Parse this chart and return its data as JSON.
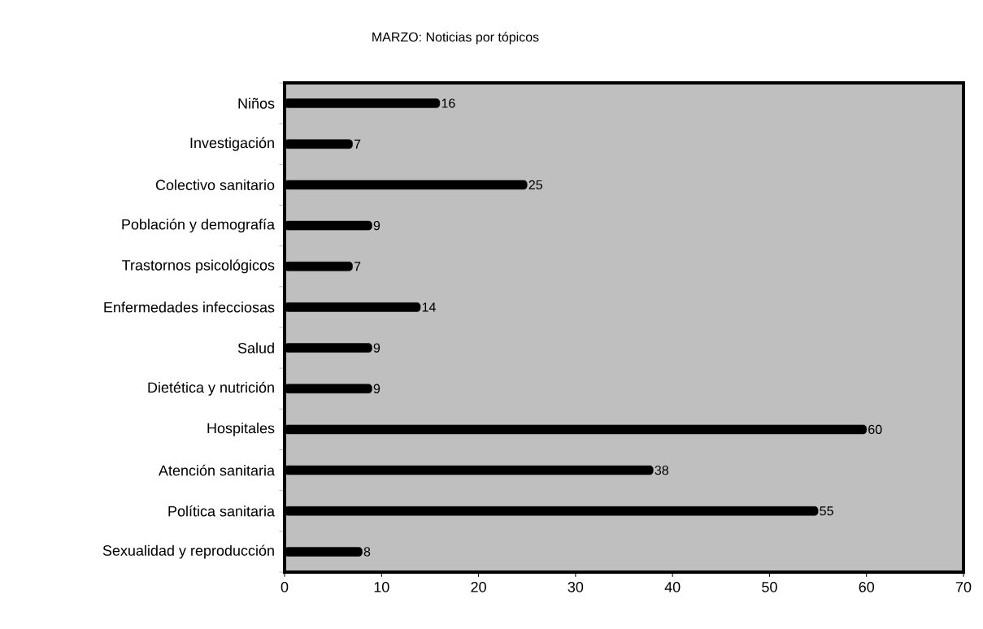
{
  "chart_data": {
    "type": "bar",
    "orientation": "horizontal",
    "title": "MARZO: Noticias por tópicos",
    "categories": [
      "Niños",
      "Investigación",
      "Colectivo sanitario",
      "Población y demografía",
      "Trastornos psicológicos",
      "Enfermedades infecciosas",
      "Salud",
      "Dietética y nutrición",
      "Hospitales",
      "Atención sanitaria",
      "Política sanitaria",
      "Sexualidad y reproducción"
    ],
    "values": [
      16,
      7,
      25,
      9,
      7,
      14,
      9,
      9,
      60,
      38,
      55,
      8
    ],
    "color": "#000000",
    "xlim": [
      0,
      70
    ],
    "xticks": [
      0,
      10,
      20,
      30,
      40,
      50,
      60,
      70
    ],
    "data_labels": true
  }
}
